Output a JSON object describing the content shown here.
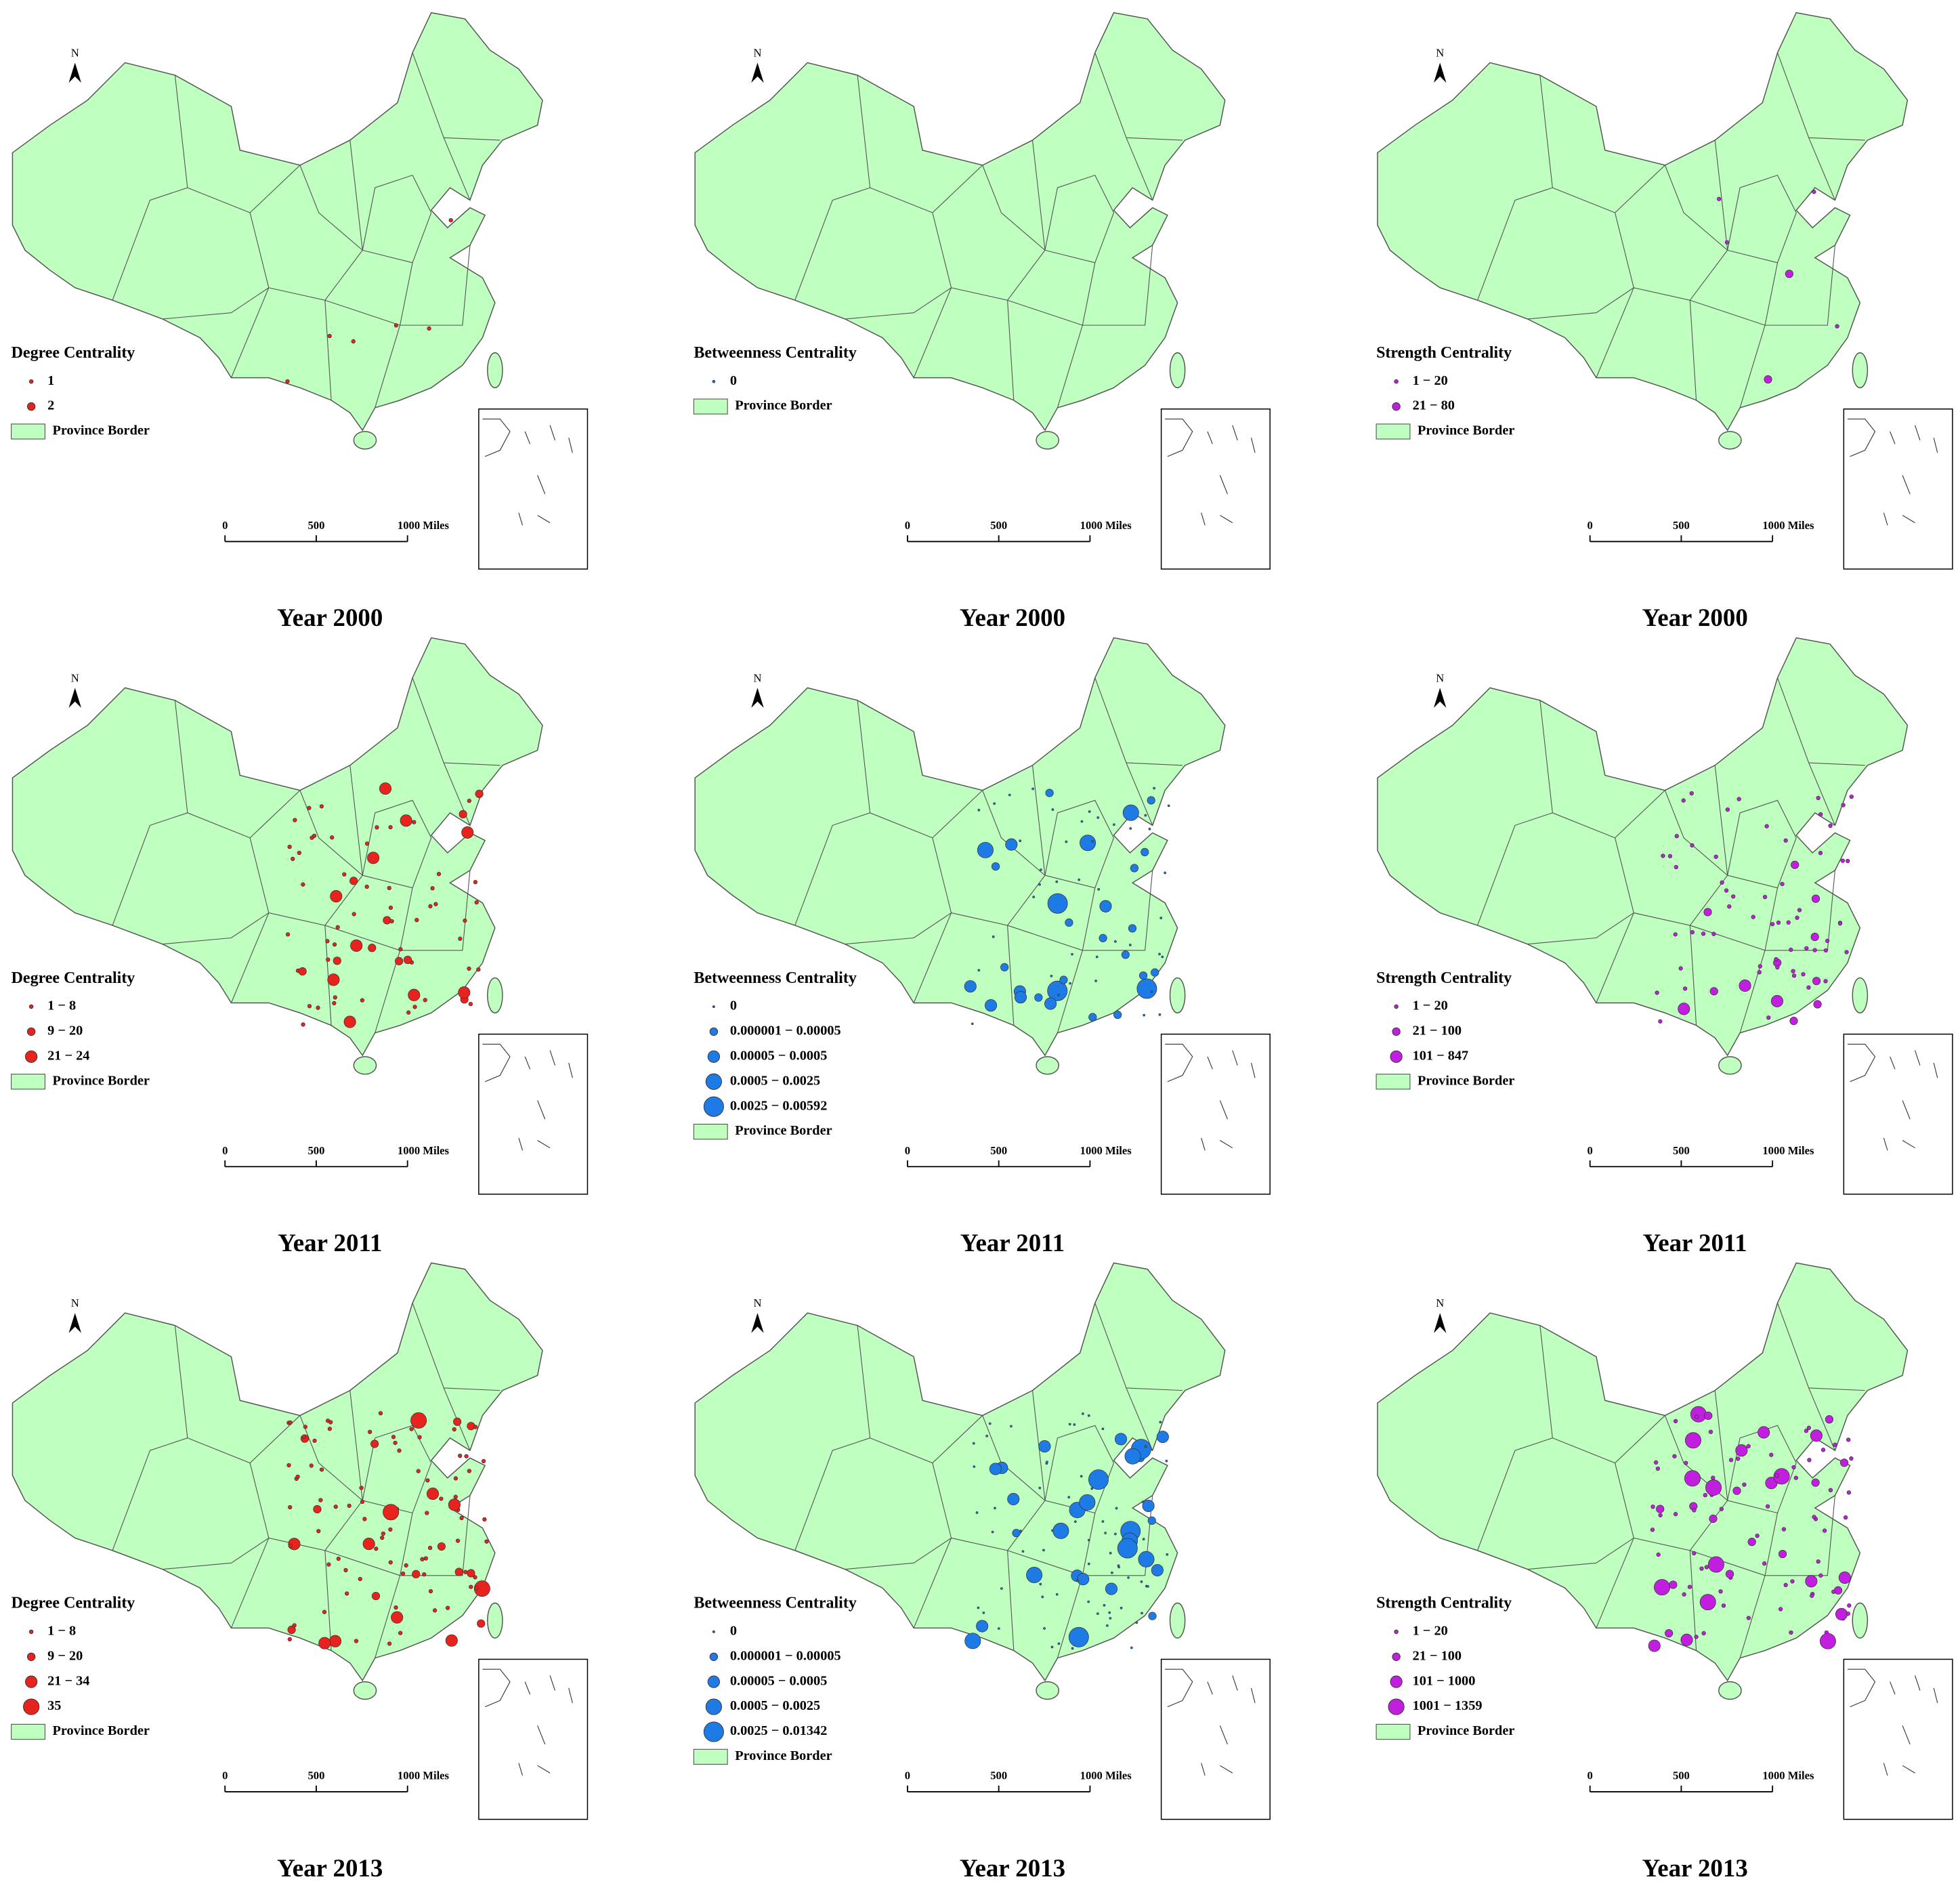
{
  "panels": [
    {
      "legend_title": "Degree Centrality",
      "legend_items": [
        "1",
        "2"
      ],
      "province_border": "Province Border",
      "north": "N",
      "scale_labels": [
        "0",
        "500",
        "1000 Miles"
      ],
      "year": "Year 2000",
      "color": "#e8231e"
    },
    {
      "legend_title": "Betweenness Centrality",
      "legend_items": [
        "0"
      ],
      "province_border": "Province Border",
      "north": "N",
      "scale_labels": [
        "0",
        "500",
        "1000 Miles"
      ],
      "year": "Year 2000",
      "color": "#1e7be6"
    },
    {
      "legend_title": "Strength Centrality",
      "legend_items": [
        "1 − 20",
        "21 − 80"
      ],
      "province_border": "Province Border",
      "north": "N",
      "scale_labels": [
        "0",
        "500",
        "1000 Miles"
      ],
      "year": "Year 2000",
      "color": "#c21ee0"
    },
    {
      "legend_title": "Degree Centrality",
      "legend_items": [
        "1 − 8",
        "9 − 20",
        "21 − 24"
      ],
      "province_border": "Province Border",
      "north": "N",
      "scale_labels": [
        "0",
        "500",
        "1000 Miles"
      ],
      "year": "Year 2011",
      "color": "#e8231e"
    },
    {
      "legend_title": "Betweenness Centrality",
      "legend_items": [
        "0",
        "0.000001 − 0.00005",
        "0.00005 − 0.0005",
        "0.0005 − 0.0025",
        "0.0025 − 0.00592"
      ],
      "province_border": "Province Border",
      "north": "N",
      "scale_labels": [
        "0",
        "500",
        "1000 Miles"
      ],
      "year": "Year 2011",
      "color": "#1e7be6"
    },
    {
      "legend_title": "Strength Centrality",
      "legend_items": [
        "1 − 20",
        "21 − 100",
        "101 − 847"
      ],
      "province_border": "Province Border",
      "north": "N",
      "scale_labels": [
        "0",
        "500",
        "1000 Miles"
      ],
      "year": "Year 2011",
      "color": "#c21ee0"
    },
    {
      "legend_title": "Degree Centrality",
      "legend_items": [
        "1 − 8",
        "9 − 20",
        "21 − 34",
        "35"
      ],
      "province_border": "Province Border",
      "north": "N",
      "scale_labels": [
        "0",
        "500",
        "1000 Miles"
      ],
      "year": "Year 2013",
      "color": "#e8231e"
    },
    {
      "legend_title": "Betweenness Centrality",
      "legend_items": [
        "0",
        "0.000001 − 0.00005",
        "0.00005 − 0.0005",
        "0.0005 − 0.0025",
        "0.0025 − 0.01342"
      ],
      "province_border": "Province Border",
      "north": "N",
      "scale_labels": [
        "0",
        "500",
        "1000 Miles"
      ],
      "year": "Year 2013",
      "color": "#1e7be6"
    },
    {
      "legend_title": "Strength Centrality",
      "legend_items": [
        "1 − 20",
        "21 − 100",
        "101 − 1000",
        "1001 − 1359"
      ],
      "province_border": "Province Border",
      "north": "N",
      "scale_labels": [
        "0",
        "500",
        "1000 Miles"
      ],
      "year": "Year 2013",
      "color": "#c21ee0"
    }
  ]
}
